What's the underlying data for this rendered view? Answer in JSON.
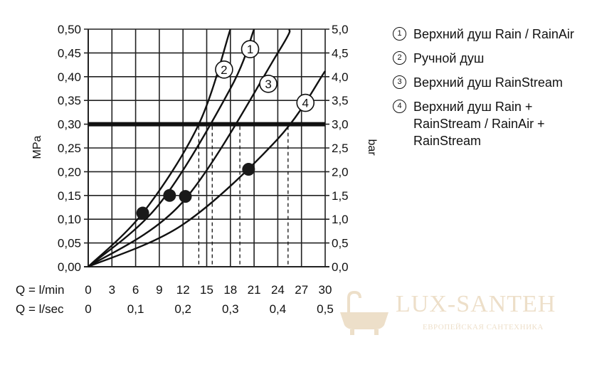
{
  "chart_data": {
    "type": "line",
    "left_axis": {
      "label": "MPa",
      "range": [
        0,
        0.5
      ],
      "ticks": [
        "0,00",
        "0,05",
        "0,10",
        "0,15",
        "0,20",
        "0,25",
        "0,30",
        "0,35",
        "0,40",
        "0,45",
        "0,50"
      ]
    },
    "right_axis": {
      "label": "bar",
      "range": [
        0,
        5
      ],
      "ticks": [
        "0,0",
        "0,5",
        "1,0",
        "1,5",
        "2,0",
        "2,5",
        "3,0",
        "3,5",
        "4,0",
        "4,5",
        "5,0"
      ]
    },
    "x_axis_primary": {
      "label": "Q = l/min",
      "range": [
        0,
        30
      ],
      "ticks": [
        "0",
        "3",
        "6",
        "9",
        "12",
        "15",
        "18",
        "21",
        "24",
        "27",
        "30"
      ]
    },
    "x_axis_secondary": {
      "label": "Q = l/sec",
      "values": [
        0,
        0.1,
        0.2,
        0.3,
        0.4,
        0.5
      ],
      "ticks": [
        "0",
        "0,1",
        "0,2",
        "0,3",
        "0,4",
        "0,5"
      ]
    },
    "grid": true,
    "reference_line": {
      "y": 0.3,
      "unit": "MPa"
    },
    "series": [
      {
        "marker": "1",
        "x": [
          0,
          9,
          18,
          21
        ],
        "y": [
          0,
          0.132,
          0.375,
          0.5
        ],
        "operating_point": [
          10.3,
          0.15
        ],
        "pressure_drop_flow": 15.7
      },
      {
        "marker": "2",
        "x": [
          0,
          7,
          14,
          18
        ],
        "y": [
          0,
          0.115,
          0.3,
          0.5
        ],
        "operating_point": [
          6.9,
          0.113
        ],
        "pressure_drop_flow": 14.0
      },
      {
        "marker": "3",
        "x": [
          0,
          12,
          24,
          25.5
        ],
        "y": [
          0,
          0.137,
          0.45,
          0.5
        ],
        "operating_point": [
          12.3,
          0.148
        ],
        "pressure_drop_flow": 19.2
      },
      {
        "marker": "4",
        "x": [
          0,
          12,
          24,
          30
        ],
        "y": [
          0,
          0.089,
          0.269,
          0.412
        ],
        "operating_point": [
          20.3,
          0.205
        ],
        "pressure_drop_flow": 25.3
      }
    ],
    "legend": {
      "placement": "right",
      "items": [
        {
          "marker": "1",
          "label": "Верхний душ Rain / RainAir"
        },
        {
          "marker": "2",
          "label": "Ручной душ"
        },
        {
          "marker": "3",
          "label": "Верхний душ RainStream"
        },
        {
          "marker": "4",
          "label": "Верхний душ Rain + RainStream / RainAir + RainStream"
        }
      ]
    }
  },
  "watermark": {
    "name": "LUX-SANTEH",
    "tagline": "ЕВРОПЕЙСКАЯ САНТЕХНИКА",
    "color": "#d9b98a"
  }
}
